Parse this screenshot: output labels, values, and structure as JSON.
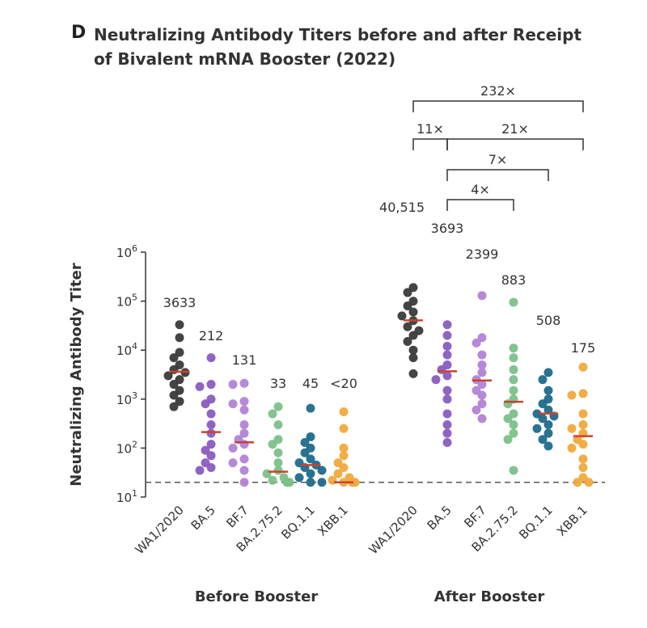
{
  "figure": {
    "panel_letter": "D",
    "title_line1": "Neutralizing Antibody Titers before and after Receipt",
    "title_line2": "of Bivalent mRNA Booster (2022)"
  },
  "chart_data": {
    "type": "scatter",
    "title": "Neutralizing Antibody Titers before and after Receipt of Bivalent mRNA Booster (2022)",
    "ylabel": "Neutralizing Antibody Titer",
    "yscale": "log",
    "ylim": [
      10,
      1000000
    ],
    "yticks": [
      {
        "base": "10",
        "exp": "1"
      },
      {
        "base": "10",
        "exp": "2"
      },
      {
        "base": "10",
        "exp": "3"
      },
      {
        "base": "10",
        "exp": "4"
      },
      {
        "base": "10",
        "exp": "5"
      },
      {
        "base": "10",
        "exp": "6"
      }
    ],
    "limit_of_detection": 20,
    "groups": [
      {
        "label": "Before Booster"
      },
      {
        "label": "After Booster"
      }
    ],
    "colors": {
      "WA1/2020": "#3a3a3a",
      "BA.5": "#8a5cc0",
      "BF.7": "#b283d6",
      "BA.2.75.2": "#7cc08a",
      "BQ.1.1": "#1f6a8c",
      "XBB.1": "#f0a93c",
      "median": "#c8442c",
      "lod_line": "#555555"
    },
    "series": [
      {
        "group": 0,
        "variant": "WA1/2020",
        "median": 3633,
        "median_label": "3633",
        "values": [
          33000,
          18000,
          9000,
          7000,
          5000,
          4000,
          3500,
          3000,
          2500,
          2000,
          1500,
          1200,
          900,
          700
        ]
      },
      {
        "group": 0,
        "variant": "BA.5",
        "median": 212,
        "median_label": "212",
        "values": [
          7000,
          2000,
          1800,
          1000,
          800,
          500,
          300,
          200,
          120,
          90,
          70,
          50,
          40,
          35
        ]
      },
      {
        "group": 0,
        "variant": "BF.7",
        "median": 131,
        "median_label": "131",
        "values": [
          2100,
          2000,
          900,
          800,
          600,
          300,
          200,
          150,
          120,
          100,
          60,
          50,
          35,
          20
        ]
      },
      {
        "group": 0,
        "variant": "BA.2.75.2",
        "median": 33,
        "median_label": "33",
        "values": [
          700,
          500,
          300,
          150,
          120,
          80,
          50,
          35,
          30,
          25,
          22,
          20,
          20,
          20
        ]
      },
      {
        "group": 0,
        "variant": "BQ.1.1",
        "median": 45,
        "median_label": "45",
        "values": [
          650,
          170,
          130,
          100,
          80,
          60,
          50,
          45,
          40,
          35,
          30,
          25,
          20,
          20
        ]
      },
      {
        "group": 0,
        "variant": "XBB.1",
        "median": 20,
        "median_label": "<20",
        "values": [
          550,
          250,
          100,
          70,
          50,
          40,
          30,
          25,
          22,
          20,
          20,
          20,
          20,
          20
        ]
      },
      {
        "group": 1,
        "variant": "WA1/2020",
        "median": 40515,
        "median_label": "40,515",
        "values": [
          190000,
          150000,
          100000,
          80000,
          60000,
          50000,
          40000,
          30000,
          25000,
          20000,
          15000,
          10000,
          7000,
          3300
        ]
      },
      {
        "group": 1,
        "variant": "BA.5",
        "median": 3693,
        "median_label": "3693",
        "values": [
          33000,
          20000,
          12000,
          8000,
          5000,
          4000,
          3000,
          2500,
          1500,
          1000,
          500,
          300,
          200,
          130
        ]
      },
      {
        "group": 1,
        "variant": "BF.7",
        "median": 2399,
        "median_label": "2399",
        "values": [
          130000,
          18000,
          14000,
          8000,
          5000,
          3500,
          2500,
          2000,
          1500,
          1200,
          800,
          600,
          400
        ]
      },
      {
        "group": 1,
        "variant": "BA.2.75.2",
        "median": 883,
        "median_label": "883",
        "values": [
          95000,
          11000,
          7000,
          4000,
          2500,
          1500,
          1000,
          800,
          500,
          400,
          300,
          200,
          150,
          35
        ]
      },
      {
        "group": 1,
        "variant": "BQ.1.1",
        "median": 508,
        "median_label": "508",
        "values": [
          3500,
          2500,
          1500,
          1000,
          800,
          600,
          500,
          450,
          400,
          300,
          250,
          200,
          150,
          110
        ]
      },
      {
        "group": 1,
        "variant": "XBB.1",
        "median": 175,
        "median_label": "175",
        "values": [
          4500,
          1300,
          1200,
          500,
          300,
          250,
          200,
          150,
          120,
          100,
          60,
          40,
          25,
          20,
          20
        ]
      }
    ],
    "fold_changes": [
      {
        "from": 6,
        "to": 11,
        "label": "232×",
        "level": 0
      },
      {
        "from": 6,
        "to": 7,
        "label": "11×",
        "level": 1
      },
      {
        "from": 7,
        "to": 11,
        "label": "21×",
        "level": 1
      },
      {
        "from": 7,
        "to": 10,
        "label": "7×",
        "level": 2
      },
      {
        "from": 7,
        "to": 9,
        "label": "4×",
        "level": 3
      }
    ]
  }
}
